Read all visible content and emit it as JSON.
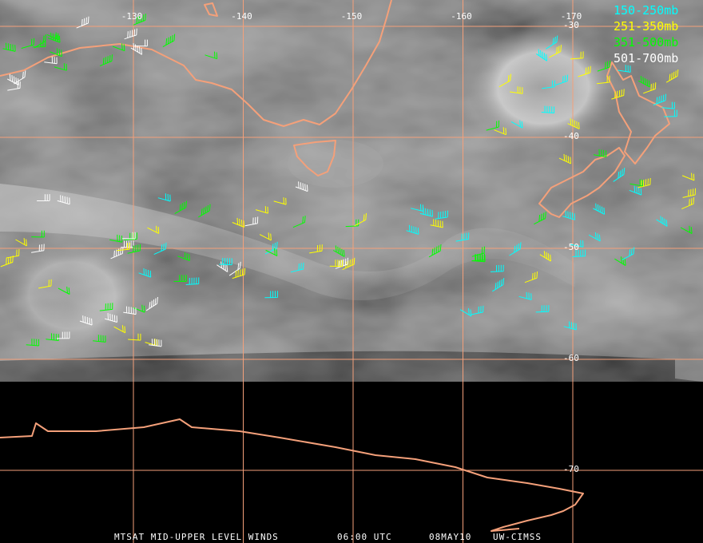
{
  "map": {
    "longitude_labels": [
      "-130",
      "-140",
      "-150",
      "-160",
      "-170"
    ],
    "latitude_labels": [
      "-30",
      "-40",
      "-50",
      "-60",
      "-70"
    ],
    "legend": [
      {
        "label": "150-250mb",
        "color": "#00ffff"
      },
      {
        "label": "251-350mb",
        "color": "#ffff00"
      },
      {
        "label": "351-500mb",
        "color": "#00ff00"
      },
      {
        "label": "501-700mb",
        "color": "#ffffff"
      }
    ],
    "footer": [
      "MTSAT MID-UPPER LEVEL WINDS",
      "06:00 UTC",
      "08MAY10",
      "UW-CIMSS"
    ]
  }
}
